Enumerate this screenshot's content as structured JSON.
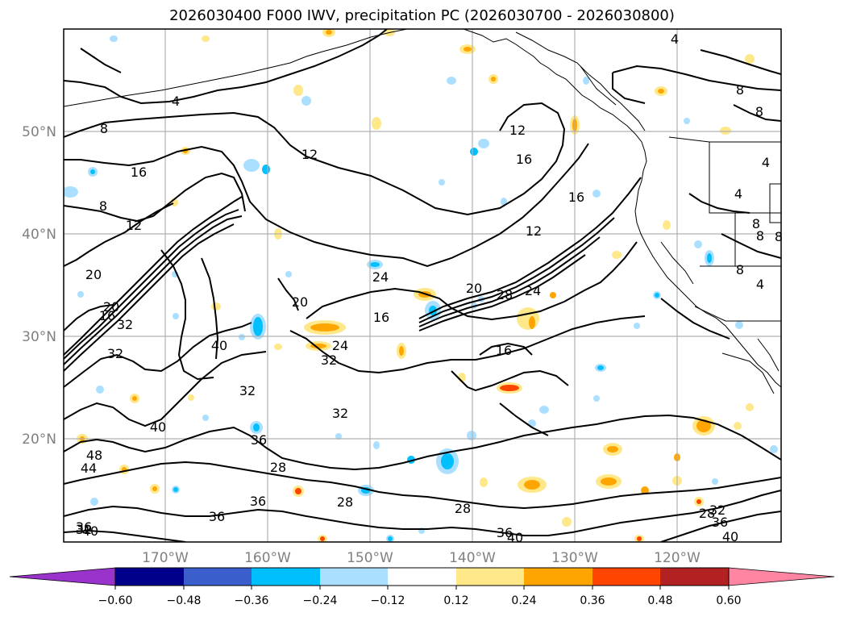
{
  "title": "2026030400 F000 IWV, precipitation PC (2026030700 - 2026030800)",
  "map": {
    "lat_labels": [
      "50°N",
      "40°N",
      "30°N",
      "20°N"
    ],
    "lon_labels": [
      "170°W",
      "160°W",
      "150°W",
      "140°W",
      "130°W",
      "120°W"
    ],
    "contour_labels": [
      "4",
      "4",
      "4",
      "4",
      "4",
      "8",
      "8",
      "8",
      "8",
      "8",
      "8",
      "8",
      "8",
      "12",
      "12",
      "12",
      "12",
      "16",
      "16",
      "16",
      "16",
      "16",
      "16",
      "20",
      "20",
      "20",
      "20",
      "24",
      "24",
      "24",
      "28",
      "28",
      "28",
      "28",
      "28",
      "32",
      "32",
      "32",
      "32",
      "32",
      "32",
      "32",
      "36",
      "36",
      "36",
      "36",
      "36",
      "36",
      "40",
      "40",
      "40",
      "40",
      "40",
      "44",
      "48"
    ]
  },
  "colorbar": {
    "ticks": [
      "−0.60",
      "−0.48",
      "−0.36",
      "−0.24",
      "−0.12",
      "0.12",
      "0.24",
      "0.36",
      "0.48",
      "0.60"
    ],
    "colors": [
      "#9933cc",
      "#00008b",
      "#3a5fcd",
      "#00bfff",
      "#aadfff",
      "#ffffff",
      "#ffe88a",
      "#ffa500",
      "#ff4500",
      "#b22222",
      "#ff85a2"
    ]
  }
}
